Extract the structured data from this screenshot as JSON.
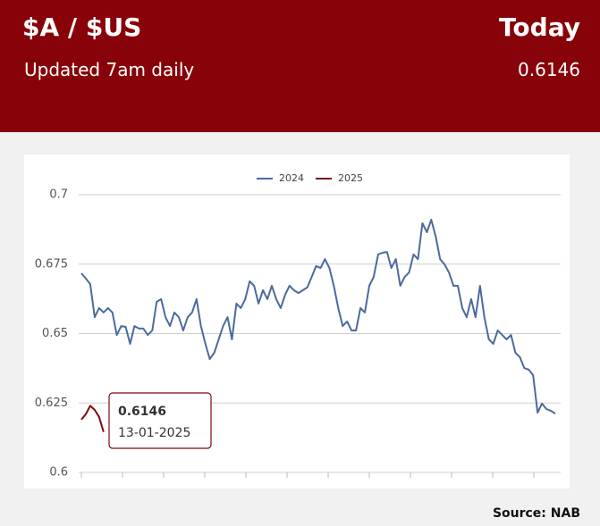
{
  "header": {
    "title": "$A / $US",
    "period": "Today",
    "subtitle": "Updated 7am daily",
    "today_value": 0.6146
  },
  "chart_data": {
    "type": "line",
    "series": [
      {
        "name": "2024",
        "color": "#4c6a9f",
        "values": [
          0.6717,
          0.6698,
          0.6678,
          0.6559,
          0.6592,
          0.6576,
          0.6592,
          0.6576,
          0.6495,
          0.6527,
          0.6524,
          0.6463,
          0.6527,
          0.6518,
          0.6518,
          0.6495,
          0.6511,
          0.6614,
          0.6624,
          0.6559,
          0.6527,
          0.6576,
          0.6559,
          0.6511,
          0.6559,
          0.6576,
          0.6624,
          0.6527,
          0.6463,
          0.6408,
          0.6431,
          0.6479,
          0.6527,
          0.6559,
          0.6479,
          0.6608,
          0.6592,
          0.6624,
          0.6688,
          0.6672,
          0.6608,
          0.6656,
          0.6624,
          0.6672,
          0.6624,
          0.6592,
          0.664,
          0.6672,
          0.6656,
          0.6646,
          0.6656,
          0.6666,
          0.6704,
          0.6743,
          0.6736,
          0.6768,
          0.6736,
          0.6672,
          0.6592,
          0.6527,
          0.6543,
          0.6511,
          0.6511,
          0.6592,
          0.6576,
          0.6672,
          0.6704,
          0.6785,
          0.6791,
          0.6794,
          0.6736,
          0.6768,
          0.6672,
          0.6704,
          0.672,
          0.6785,
          0.6768,
          0.6897,
          0.6865,
          0.691,
          0.6849,
          0.6768,
          0.6749,
          0.672,
          0.6672,
          0.6672,
          0.6592,
          0.6559,
          0.6624,
          0.6559,
          0.6672,
          0.6559,
          0.6479,
          0.6463,
          0.6511,
          0.6495,
          0.6479,
          0.6495,
          0.6431,
          0.6415,
          0.6376,
          0.637,
          0.635,
          0.6215,
          0.6248,
          0.6228,
          0.6222,
          0.6212
        ]
      },
      {
        "name": "2025",
        "color": "#7b0a0e",
        "values": [
          0.619,
          0.621,
          0.624,
          0.6225,
          0.62,
          0.6146
        ]
      }
    ],
    "ylim": [
      0.6,
      0.7
    ],
    "yticks": [
      0.6,
      0.625,
      0.65,
      0.675,
      0.7
    ],
    "grid": true,
    "legend": "top",
    "tooltip": {
      "value": 0.6146,
      "date": "13-01-2025"
    }
  },
  "source": "Source: NAB"
}
